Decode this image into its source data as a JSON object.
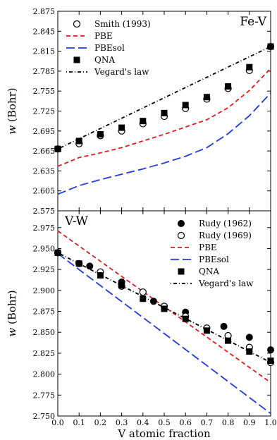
{
  "chart_data": [
    {
      "type": "scatter",
      "panel_label": "Fe-V",
      "ylabel_var": "w",
      "ylabel_unit": "(Bohr)",
      "xlim": [
        0.0,
        1.0
      ],
      "ylim": [
        2.575,
        2.875
      ],
      "yticks": [
        "2.575",
        "2.605",
        "2.635",
        "2.665",
        "2.695",
        "2.725",
        "2.755",
        "2.785",
        "2.815",
        "2.845",
        "2.875"
      ],
      "legend_placement": "top-left",
      "series": [
        {
          "name": "Smith (1993)",
          "kind": "open-circle",
          "color": "#000000",
          "x": [
            0.0,
            0.1,
            0.2,
            0.3,
            0.4,
            0.5,
            0.6,
            0.7,
            0.8,
            0.9,
            1.0
          ],
          "y": [
            2.668,
            2.676,
            2.688,
            2.695,
            2.706,
            2.717,
            2.729,
            2.743,
            2.759,
            2.786,
            2.822
          ]
        },
        {
          "name": "PBE",
          "kind": "line",
          "dash": "6,4",
          "color": "#e31a1c",
          "x": [
            0.0,
            0.1,
            0.2,
            0.3,
            0.4,
            0.5,
            0.6,
            0.7,
            0.8,
            0.9,
            1.0
          ],
          "y": [
            2.642,
            2.655,
            2.662,
            2.67,
            2.68,
            2.69,
            2.701,
            2.712,
            2.73,
            2.756,
            2.789
          ]
        },
        {
          "name": "PBEsol",
          "kind": "line",
          "dash": "12,5",
          "color": "#1f3bdb",
          "x": [
            0.0,
            0.1,
            0.2,
            0.3,
            0.4,
            0.5,
            0.6,
            0.7,
            0.8,
            0.9,
            1.0
          ],
          "y": [
            2.6,
            2.613,
            2.622,
            2.63,
            2.638,
            2.647,
            2.657,
            2.67,
            2.691,
            2.718,
            2.752
          ]
        },
        {
          "name": "QNA",
          "kind": "filled-square",
          "color": "#000000",
          "x": [
            0.0,
            0.1,
            0.2,
            0.3,
            0.4,
            0.5,
            0.6,
            0.7,
            0.8,
            0.9,
            1.0
          ],
          "y": [
            2.668,
            2.68,
            2.69,
            2.7,
            2.71,
            2.722,
            2.734,
            2.746,
            2.762,
            2.791,
            2.822
          ]
        },
        {
          "name": "Vegard's law",
          "kind": "line",
          "dash": "1,3,5,3",
          "color": "#000000",
          "x": [
            0.0,
            1.0
          ],
          "y": [
            2.668,
            2.822
          ]
        }
      ]
    },
    {
      "type": "scatter",
      "panel_label": "V-W",
      "ylabel_var": "w",
      "ylabel_unit": "(Bohr)",
      "xlabel": "V atomic fraction",
      "xlim": [
        0.0,
        1.0
      ],
      "ylim": [
        2.75,
        2.995
      ],
      "xticks": [
        "0.0",
        "0.1",
        "0.2",
        "0.3",
        "0.4",
        "0.5",
        "0.6",
        "0.7",
        "0.8",
        "0.9",
        "1.0"
      ],
      "yticks": [
        "2.750",
        "2.775",
        "2.800",
        "2.825",
        "2.850",
        "2.875",
        "2.900",
        "2.925",
        "2.950",
        "2.975"
      ],
      "legend_placement": "top-right",
      "series": [
        {
          "name": "Rudy (1962)",
          "kind": "filled-circle",
          "color": "#000000",
          "x": [
            0.0,
            0.15,
            0.3,
            0.45,
            0.6,
            0.78,
            0.9,
            1.0
          ],
          "y": [
            2.945,
            2.929,
            2.91,
            2.887,
            2.874,
            2.857,
            2.844,
            2.829
          ]
        },
        {
          "name": "Rudy (1969)",
          "kind": "open-circle",
          "color": "#000000",
          "x": [
            0.0,
            0.1,
            0.2,
            0.3,
            0.4,
            0.5,
            0.6,
            0.7,
            0.8,
            0.9,
            1.0
          ],
          "y": [
            2.945,
            2.932,
            2.922,
            2.905,
            2.898,
            2.881,
            2.869,
            2.855,
            2.846,
            2.832,
            2.814
          ]
        },
        {
          "name": "PBE",
          "kind": "line",
          "dash": "6,4",
          "color": "#e31a1c",
          "x": [
            0.0,
            1.0
          ],
          "y": [
            2.971,
            2.79
          ]
        },
        {
          "name": "PBEsol",
          "kind": "line",
          "dash": "12,5",
          "color": "#1f3bdb",
          "x": [
            0.0,
            1.0
          ],
          "y": [
            2.944,
            2.753
          ]
        },
        {
          "name": "QNA",
          "kind": "filled-square",
          "color": "#000000",
          "x": [
            0.0,
            0.1,
            0.2,
            0.3,
            0.4,
            0.5,
            0.6,
            0.7,
            0.8,
            0.9,
            1.0
          ],
          "y": [
            2.945,
            2.932,
            2.918,
            2.906,
            2.89,
            2.878,
            2.866,
            2.852,
            2.84,
            2.827,
            2.816
          ]
        },
        {
          "name": "Vegard's law",
          "kind": "line",
          "dash": "1,3,5,3",
          "color": "#000000",
          "x": [
            0.0,
            1.0
          ],
          "y": [
            2.945,
            2.814
          ]
        }
      ]
    }
  ]
}
